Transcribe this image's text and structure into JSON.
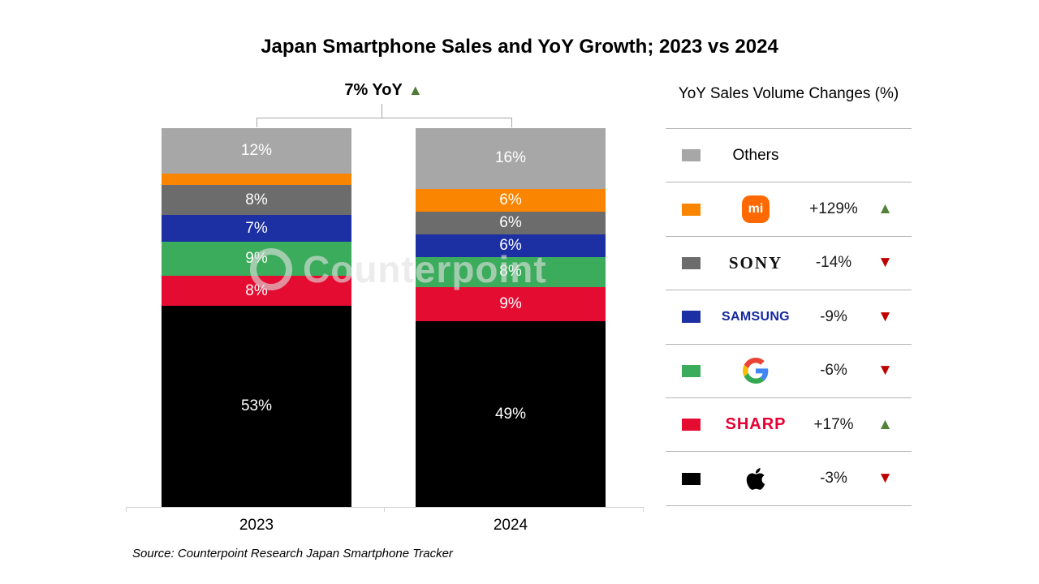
{
  "title": "Japan Smartphone Sales and YoY Growth; 2023 vs 2024",
  "annotation": {
    "text": "7% YoY",
    "arrow": "▲"
  },
  "source": "Source: Counterpoint Research Japan Smartphone Tracker",
  "watermark": "Counterpoint",
  "legend": {
    "header": "YoY Sales Volume Changes (%)",
    "rows": [
      {
        "brand": "Others",
        "wordmark": "Others",
        "change": "",
        "arrow": ""
      },
      {
        "brand": "Xiaomi",
        "wordmark": "mi",
        "change": "+129%",
        "arrow": "▲"
      },
      {
        "brand": "Sony",
        "wordmark": "SONY",
        "change": "-14%",
        "arrow": "▼"
      },
      {
        "brand": "Samsung",
        "wordmark": "SAMSUNG",
        "change": "-9%",
        "arrow": "▼"
      },
      {
        "brand": "Google",
        "wordmark": "G",
        "change": "-6%",
        "arrow": "▼"
      },
      {
        "brand": "Sharp",
        "wordmark": "SHARP",
        "change": "+17%",
        "arrow": "▲"
      },
      {
        "brand": "Apple",
        "wordmark": "",
        "change": "-3%",
        "arrow": "▼"
      }
    ]
  },
  "chart_data": {
    "type": "bar",
    "subtype": "100-percent-stacked-column",
    "title": "Japan Smartphone Sales and YoY Growth; 2023 vs 2024",
    "categories": [
      "2023",
      "2024"
    ],
    "series": [
      {
        "name": "Others",
        "color": "#A7A7A7",
        "values": [
          12,
          16
        ],
        "labels": [
          "12%",
          "16%"
        ]
      },
      {
        "name": "Xiaomi",
        "color": "#FA8500",
        "values": [
          3,
          6
        ],
        "labels": [
          "",
          "6%"
        ]
      },
      {
        "name": "Sony",
        "color": "#6C6C6C",
        "values": [
          8,
          6
        ],
        "labels": [
          "8%",
          "6%"
        ]
      },
      {
        "name": "Samsung",
        "color": "#1C2FA3",
        "values": [
          7,
          6
        ],
        "labels": [
          "7%",
          "6%"
        ]
      },
      {
        "name": "Google",
        "color": "#3BAC5C",
        "values": [
          9,
          8
        ],
        "labels": [
          "9%",
          "8%"
        ]
      },
      {
        "name": "Sharp",
        "color": "#E50C31",
        "values": [
          8,
          9
        ],
        "labels": [
          "8%",
          "9%"
        ]
      },
      {
        "name": "Apple",
        "color": "#000000",
        "values": [
          53,
          49
        ],
        "labels": [
          "53%",
          "49%"
        ]
      }
    ],
    "stack_order": "top-to-bottom",
    "unit": "%",
    "value_range": [
      0,
      100
    ],
    "legend_position": "right",
    "total_growth_annotation": "7% YoY up",
    "yoy_changes": {
      "Xiaomi": "+129%",
      "Sony": "-14%",
      "Samsung": "-9%",
      "Google": "-6%",
      "Sharp": "+17%",
      "Apple": "-3%"
    }
  },
  "colors": {
    "arrow_up": "#538135",
    "arrow_down": "#C00000",
    "xiaomi_logo_bg": "#FF6900",
    "samsung_wordmark": "#1428A0",
    "sharp_wordmark": "#E60033"
  }
}
